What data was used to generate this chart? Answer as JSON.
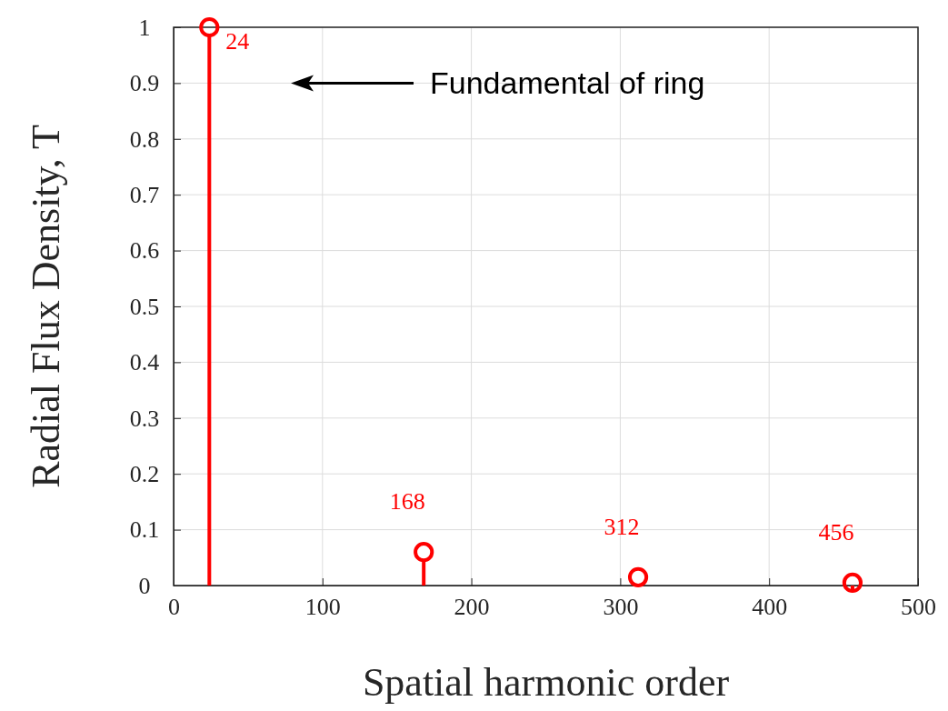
{
  "chart_data": {
    "type": "lollipop",
    "xlabel": "Spatial harmonic order",
    "ylabel": "Radial Flux Density, T",
    "x": [
      24,
      168,
      312,
      456
    ],
    "series": [
      {
        "color": "#ff0000",
        "values": [
          1,
          0.06,
          0.015,
          0.005
        ]
      }
    ],
    "marker": "circle",
    "grid": true,
    "xlim": [
      0,
      500
    ],
    "xticks": [
      0,
      100,
      200,
      300,
      400,
      500
    ],
    "ylim": [
      0,
      1
    ],
    "yticks": [
      0,
      0.1,
      0.2,
      0.3,
      0.4,
      0.5,
      0.6,
      0.7,
      0.8,
      0.9,
      1
    ],
    "annotations": [
      {
        "text": "24",
        "x": 24,
        "y": 1
      },
      {
        "text": "168",
        "x": 168,
        "y": 0.06
      },
      {
        "text": "312",
        "x": 312,
        "y": 0.015
      },
      {
        "text": "456",
        "x": 456,
        "y": 0.005
      },
      "Fundamental of ring"
    ]
  }
}
